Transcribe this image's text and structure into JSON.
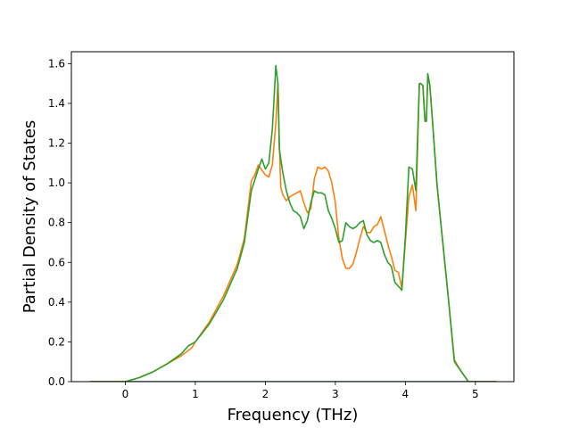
{
  "chart_data": {
    "type": "line",
    "title": "",
    "xlabel": "Frequency (THz)",
    "ylabel": "Partial Density of States",
    "xlim": [
      -0.77,
      5.55
    ],
    "ylim": [
      0,
      1.66
    ],
    "xticks": [
      "0",
      "1",
      "2",
      "3",
      "4",
      "5"
    ],
    "yticks": [
      "0.0",
      "0.2",
      "0.4",
      "0.6",
      "0.8",
      "1.0",
      "1.2",
      "1.4",
      "1.6"
    ],
    "grid": false,
    "legend": "none",
    "series": [
      {
        "color": "#1f77b4",
        "x": [
          -0.5,
          0.0,
          5.3
        ],
        "y": [
          0.0,
          0.0,
          0.0
        ]
      },
      {
        "color": "#ff7f0e",
        "x": [
          -0.5,
          0.0,
          0.2,
          0.4,
          0.6,
          0.8,
          0.95,
          1.0,
          1.2,
          1.4,
          1.6,
          1.7,
          1.8,
          1.85,
          1.9,
          2.0,
          2.05,
          2.1,
          2.15,
          2.18,
          2.2,
          2.22,
          2.25,
          2.3,
          2.35,
          2.4,
          2.45,
          2.5,
          2.55,
          2.6,
          2.65,
          2.7,
          2.75,
          2.8,
          2.85,
          2.9,
          2.95,
          3.0,
          3.05,
          3.1,
          3.15,
          3.2,
          3.25,
          3.3,
          3.35,
          3.4,
          3.45,
          3.5,
          3.55,
          3.6,
          3.65,
          3.7,
          3.75,
          3.8,
          3.85,
          3.9,
          3.95,
          4.0,
          4.05,
          4.1,
          4.15,
          4.2,
          4.22,
          4.25,
          4.28,
          4.3,
          4.32,
          4.35,
          4.4,
          4.45,
          4.5,
          4.6,
          4.7,
          4.8,
          4.9,
          5.0,
          5.3
        ],
        "y": [
          0.0,
          0.0,
          0.02,
          0.05,
          0.09,
          0.13,
          0.17,
          0.2,
          0.3,
          0.43,
          0.59,
          0.72,
          1.01,
          1.04,
          1.09,
          1.04,
          1.03,
          1.09,
          1.3,
          1.5,
          1.2,
          0.98,
          0.94,
          0.91,
          0.93,
          0.94,
          0.95,
          0.96,
          0.9,
          0.85,
          0.87,
          1.02,
          1.08,
          1.07,
          1.08,
          1.06,
          1.0,
          0.9,
          0.72,
          0.62,
          0.57,
          0.57,
          0.59,
          0.65,
          0.72,
          0.78,
          0.75,
          0.75,
          0.78,
          0.79,
          0.83,
          0.76,
          0.69,
          0.63,
          0.56,
          0.55,
          0.47,
          0.7,
          0.93,
          0.99,
          0.86,
          1.5,
          1.5,
          1.49,
          1.31,
          1.31,
          1.53,
          1.49,
          1.25,
          1.0,
          0.82,
          0.47,
          0.11,
          0.05,
          0.0,
          0.0,
          0.0
        ]
      },
      {
        "color": "#2ca02c",
        "x": [
          -0.5,
          0.0,
          0.2,
          0.4,
          0.6,
          0.8,
          0.9,
          1.0,
          1.2,
          1.4,
          1.6,
          1.7,
          1.8,
          1.9,
          1.95,
          2.0,
          2.05,
          2.1,
          2.15,
          2.18,
          2.2,
          2.25,
          2.3,
          2.35,
          2.4,
          2.45,
          2.5,
          2.55,
          2.6,
          2.65,
          2.7,
          2.75,
          2.8,
          2.85,
          2.9,
          2.95,
          3.0,
          3.05,
          3.1,
          3.15,
          3.2,
          3.25,
          3.3,
          3.35,
          3.4,
          3.45,
          3.5,
          3.55,
          3.6,
          3.65,
          3.7,
          3.75,
          3.8,
          3.85,
          3.9,
          3.95,
          4.0,
          4.05,
          4.1,
          4.15,
          4.2,
          4.22,
          4.25,
          4.28,
          4.3,
          4.32,
          4.35,
          4.4,
          4.45,
          4.5,
          4.6,
          4.7,
          4.8,
          4.9,
          5.0,
          5.3
        ],
        "y": [
          0.0,
          0.0,
          0.02,
          0.05,
          0.09,
          0.14,
          0.18,
          0.2,
          0.29,
          0.41,
          0.57,
          0.7,
          0.96,
          1.07,
          1.12,
          1.07,
          1.1,
          1.27,
          1.59,
          1.5,
          1.17,
          1.05,
          0.96,
          0.9,
          0.86,
          0.85,
          0.83,
          0.77,
          0.81,
          0.9,
          0.96,
          0.95,
          0.95,
          0.94,
          0.86,
          0.82,
          0.77,
          0.7,
          0.71,
          0.8,
          0.78,
          0.77,
          0.78,
          0.8,
          0.81,
          0.74,
          0.71,
          0.7,
          0.71,
          0.7,
          0.64,
          0.6,
          0.58,
          0.5,
          0.48,
          0.46,
          0.73,
          1.08,
          1.07,
          0.96,
          1.5,
          1.5,
          1.49,
          1.31,
          1.31,
          1.55,
          1.49,
          1.25,
          1.0,
          0.82,
          0.47,
          0.1,
          0.05,
          0.0,
          0.0,
          0.0
        ]
      }
    ]
  }
}
